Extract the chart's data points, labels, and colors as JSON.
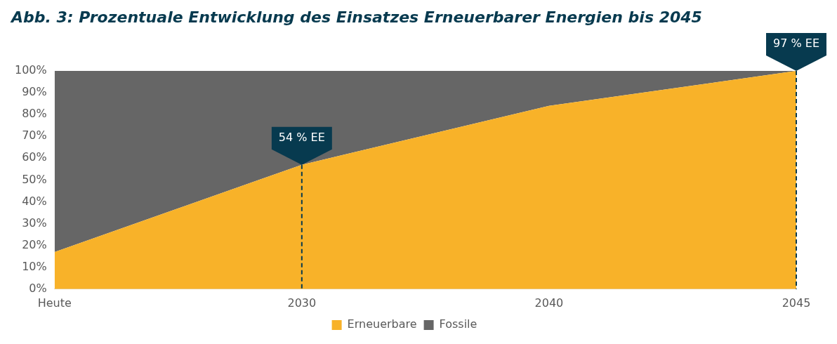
{
  "chart_data": {
    "type": "area",
    "title": "Abb. 3: Prozentuale Entwicklung des Einsatzes Erneuerbarer Energien bis 2045",
    "categories": [
      "Heute",
      "2030",
      "2040",
      "2045"
    ],
    "stacked": true,
    "series": [
      {
        "name": "Erneuerbare",
        "color": "#f8b229",
        "values": [
          17,
          57,
          84,
          100
        ]
      },
      {
        "name": "Fossile",
        "color": "#666666",
        "values": [
          83,
          43,
          16,
          0
        ]
      }
    ],
    "ylim": [
      0,
      100
    ],
    "yticks": [
      {
        "value": 0,
        "label": "0%"
      },
      {
        "value": 10,
        "label": "10%"
      },
      {
        "value": 20,
        "label": "20%"
      },
      {
        "value": 30,
        "label": "30%"
      },
      {
        "value": 40,
        "label": "40%"
      },
      {
        "value": 50,
        "label": "50%"
      },
      {
        "value": 60,
        "label": "60%"
      },
      {
        "value": 70,
        "label": "70%"
      },
      {
        "value": 80,
        "label": "80%"
      },
      {
        "value": 90,
        "label": "90%"
      },
      {
        "value": 100,
        "label": "100%"
      }
    ],
    "grid": false,
    "legend": "bottom",
    "ref_lines": [
      {
        "axis": "x",
        "value": "2030",
        "color": "#073a4f",
        "line_style": "dashed"
      },
      {
        "axis": "x",
        "value": "2045",
        "color": "#073a4f",
        "line_style": "dashed"
      }
    ],
    "annotations": [
      {
        "text": "54 % EE",
        "x": "2030",
        "y": 57
      },
      {
        "text": "97 % EE",
        "x": "2045",
        "y": 100
      }
    ]
  }
}
